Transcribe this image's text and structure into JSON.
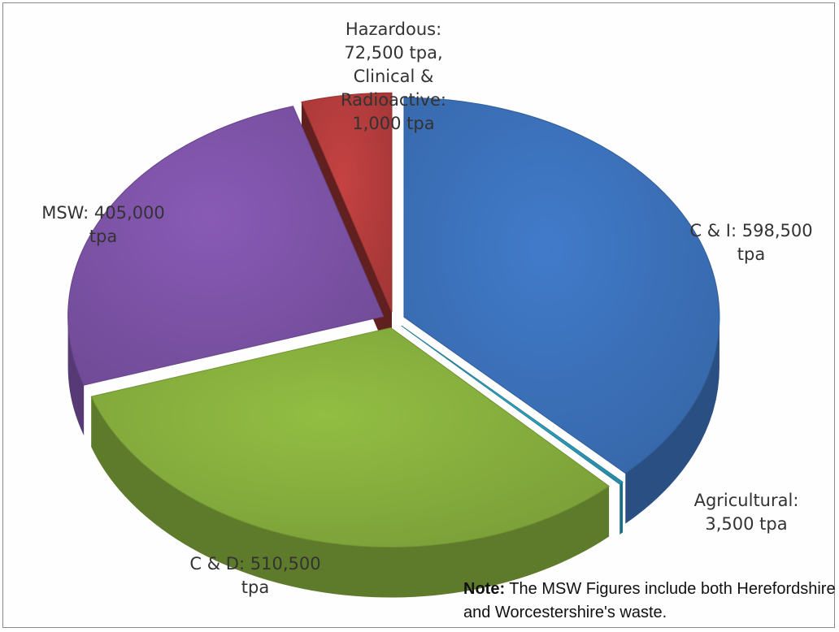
{
  "chart_data": {
    "type": "pie",
    "style": "3d-exploded",
    "slices": [
      {
        "name": "C & I",
        "value": 598500,
        "unit": "tpa",
        "color": "#3a6eb4",
        "label_lines": [
          "C & I: 598,500",
          "tpa"
        ]
      },
      {
        "name": "Agricultural",
        "value": 3500,
        "unit": "tpa",
        "color": "#2e97b4",
        "label_lines": [
          "Agricultural:",
          "3,500 tpa"
        ]
      },
      {
        "name": "C & D",
        "value": 510500,
        "unit": "tpa",
        "color": "#82aa3c",
        "label_lines": [
          "C & D: 510,500",
          "tpa"
        ]
      },
      {
        "name": "MSW",
        "value": 405000,
        "unit": "tpa",
        "color": "#7950a2",
        "label_lines": [
          "MSW: 405,000",
          "tpa"
        ]
      },
      {
        "name": "Hazardous, Clinical & Radioactive",
        "value": 73500,
        "unit": "tpa",
        "color": "#b03b3b",
        "label_lines": [
          "Hazardous:",
          "72,500 tpa,",
          "Clinical &",
          "Radioactive:",
          "1,000 tpa"
        ]
      }
    ]
  },
  "note": {
    "prefix": "Note:",
    "text": " The MSW Figures include both Herefordshire and Worcestershire's waste."
  }
}
